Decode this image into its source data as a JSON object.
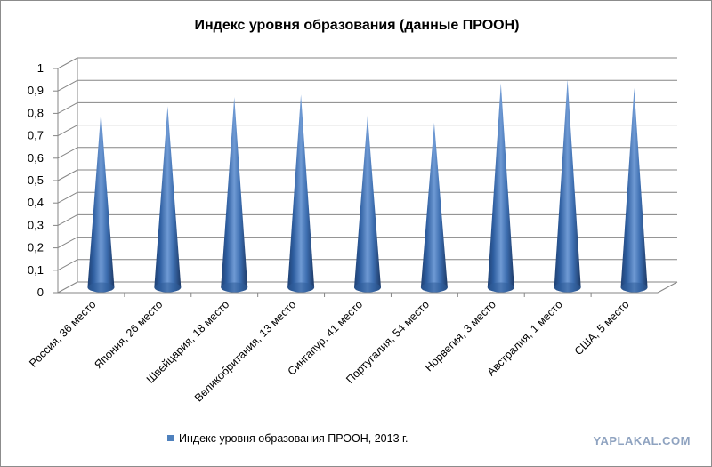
{
  "chart_data": {
    "type": "bar",
    "bar_shape": "cone",
    "title": "Индекс уровня образования (данные ПРООН)",
    "categories": [
      "Россия, 36 место",
      "Япония, 26 место",
      "Швейцария, 18 место",
      "Великобритания, 13 место",
      "Сингапур, 41 место",
      "Португалия, 54 место",
      "Норвегия, 3 место",
      "Австралия, 1 место",
      "США, 5 место"
    ],
    "series": [
      {
        "name": "Индекс уровня образования ПРООН, 2013 г.",
        "color": "#4f81bd",
        "values": [
          0.784,
          0.808,
          0.849,
          0.86,
          0.768,
          0.734,
          0.91,
          0.927,
          0.89
        ]
      }
    ],
    "yticks": [
      "0",
      "0,1",
      "0,2",
      "0,3",
      "0,4",
      "0,5",
      "0,6",
      "0,7",
      "0,8",
      "0,9",
      "1"
    ],
    "ylim": [
      0,
      1
    ],
    "grid": true,
    "legend_position": "bottom"
  },
  "watermark": "YAPLAKAL.COM"
}
